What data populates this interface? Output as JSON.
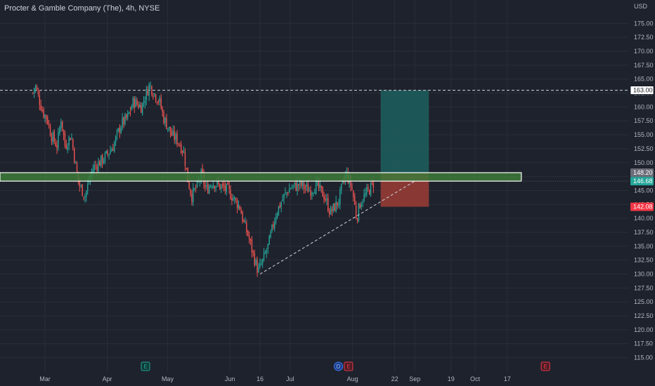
{
  "header": {
    "title": "Procter & Gamble Company (The), 4h, NYSE"
  },
  "colors": {
    "background": "#1e222d",
    "grid": "#2a2e39",
    "up": "#26a69a",
    "down": "#ef5350",
    "zone_fill": "#3d7a3a",
    "target_fill": "#1e5a58",
    "stop_fill": "#8f3a35"
  },
  "chart_data": {
    "type": "candlestick",
    "currency_label": "USD",
    "ylim": [
      114,
      178
    ],
    "y_ticks": [
      "175.00",
      "172.50",
      "170.00",
      "167.50",
      "165.00",
      "162.50",
      "160.00",
      "157.50",
      "155.00",
      "152.50",
      "150.00",
      "147.50",
      "145.00",
      "142.50",
      "140.00",
      "137.50",
      "135.00",
      "132.50",
      "130.00",
      "127.50",
      "125.00",
      "122.50",
      "120.00",
      "117.50",
      "115.00"
    ],
    "x_ticks": [
      "Mar",
      "Apr",
      "May",
      "Jun",
      "16",
      "Jul",
      "Aug",
      "22",
      "Sep",
      "19",
      "Oct",
      "17"
    ],
    "price_path": [
      {
        "date": "Feb 23",
        "price": 162.5
      },
      {
        "date": "Feb 24",
        "price": 164.0
      },
      {
        "date": "Feb 28",
        "price": 159.0
      },
      {
        "date": "Mar 2",
        "price": 158.0
      },
      {
        "date": "Mar 4",
        "price": 155.0
      },
      {
        "date": "Mar 7",
        "price": 153.0
      },
      {
        "date": "Mar 9",
        "price": 158.0
      },
      {
        "date": "Mar 11",
        "price": 153.0
      },
      {
        "date": "Mar 14",
        "price": 155.0
      },
      {
        "date": "Mar 16",
        "price": 150.0
      },
      {
        "date": "Mar 18",
        "price": 146.0
      },
      {
        "date": "Mar 21",
        "price": 144.0
      },
      {
        "date": "Mar 23",
        "price": 147.0
      },
      {
        "date": "Mar 25",
        "price": 149.0
      },
      {
        "date": "Mar 28",
        "price": 150.0
      },
      {
        "date": "Mar 31",
        "price": 151.0
      },
      {
        "date": "Apr 4",
        "price": 153.0
      },
      {
        "date": "Apr 8",
        "price": 157.0
      },
      {
        "date": "Apr 11",
        "price": 158.0
      },
      {
        "date": "Apr 14",
        "price": 161.0
      },
      {
        "date": "Apr 18",
        "price": 160.0
      },
      {
        "date": "Apr 20",
        "price": 162.0
      },
      {
        "date": "Apr 22",
        "price": 164.0
      },
      {
        "date": "Apr 25",
        "price": 162.0
      },
      {
        "date": "Apr 27",
        "price": 161.0
      },
      {
        "date": "Apr 29",
        "price": 158.0
      },
      {
        "date": "May 3",
        "price": 155.0
      },
      {
        "date": "May 6",
        "price": 154.0
      },
      {
        "date": "May 9",
        "price": 152.0
      },
      {
        "date": "May 11",
        "price": 147.0
      },
      {
        "date": "May 13",
        "price": 144.0
      },
      {
        "date": "May 16",
        "price": 146.0
      },
      {
        "date": "May 18",
        "price": 148.0
      },
      {
        "date": "May 20",
        "price": 145.0
      },
      {
        "date": "May 23",
        "price": 146.5
      },
      {
        "date": "May 26",
        "price": 146.0
      },
      {
        "date": "May 31",
        "price": 145.0
      },
      {
        "date": "Jun 3",
        "price": 143.5
      },
      {
        "date": "Jun 6",
        "price": 142.0
      },
      {
        "date": "Jun 8",
        "price": 139.0
      },
      {
        "date": "Jun 10",
        "price": 137.0
      },
      {
        "date": "Jun 13",
        "price": 133.0
      },
      {
        "date": "Jun 15",
        "price": 130.5
      },
      {
        "date": "Jun 17",
        "price": 132.0
      },
      {
        "date": "Jun 20",
        "price": 135.0
      },
      {
        "date": "Jun 22",
        "price": 138.0
      },
      {
        "date": "Jun 24",
        "price": 141.0
      },
      {
        "date": "Jun 28",
        "price": 144.0
      },
      {
        "date": "Jul 1",
        "price": 145.5
      },
      {
        "date": "Jul 6",
        "price": 146.0
      },
      {
        "date": "Jul 11",
        "price": 145.0
      },
      {
        "date": "Jul 14",
        "price": 146.0
      },
      {
        "date": "Jul 18",
        "price": 144.0
      },
      {
        "date": "Jul 21",
        "price": 141.0
      },
      {
        "date": "Jul 25",
        "price": 143.0
      },
      {
        "date": "Jul 27",
        "price": 146.0
      },
      {
        "date": "Jul 29",
        "price": 148.0
      },
      {
        "date": "Aug 1",
        "price": 145.0
      },
      {
        "date": "Aug 3",
        "price": 140.0
      },
      {
        "date": "Aug 5",
        "price": 143.0
      },
      {
        "date": "Aug 8",
        "price": 144.5
      },
      {
        "date": "Aug 11",
        "price": 146.0
      },
      {
        "date": "Aug 12",
        "price": 146.7
      }
    ],
    "annotations": {
      "resistance_line": {
        "price": 163.0,
        "label": "163.00"
      },
      "zone": {
        "top": 148.2,
        "bottom": 146.68,
        "start": "Feb 23",
        "end": "Oct 24"
      },
      "trend_line": {
        "start": {
          "date": "Jun 16",
          "price": 130.0
        },
        "end": {
          "date": "Sep 1",
          "price": 146.68
        }
      },
      "position": {
        "start": "Aug 15",
        "end": "Sep 8",
        "target": 163.0,
        "entry": 148.2,
        "stop": 142.08
      }
    },
    "price_labels": [
      {
        "price": 163.0,
        "text": "163.00",
        "style": "white"
      },
      {
        "price": 148.2,
        "text": "148.20",
        "style": "gray"
      },
      {
        "price": 146.68,
        "text": "146.68",
        "style": "green"
      },
      {
        "price": 142.08,
        "text": "142.08",
        "style": "red"
      }
    ],
    "event_markers": [
      {
        "date": "Apr 20",
        "letter": "E",
        "kind": "earnings-green"
      },
      {
        "date": "Jul 25",
        "letter": "D",
        "kind": "dividend"
      },
      {
        "date": "Jul 30",
        "letter": "E",
        "kind": "earnings-red"
      },
      {
        "date": "Nov 5",
        "letter": "E",
        "kind": "earnings-red"
      }
    ]
  }
}
